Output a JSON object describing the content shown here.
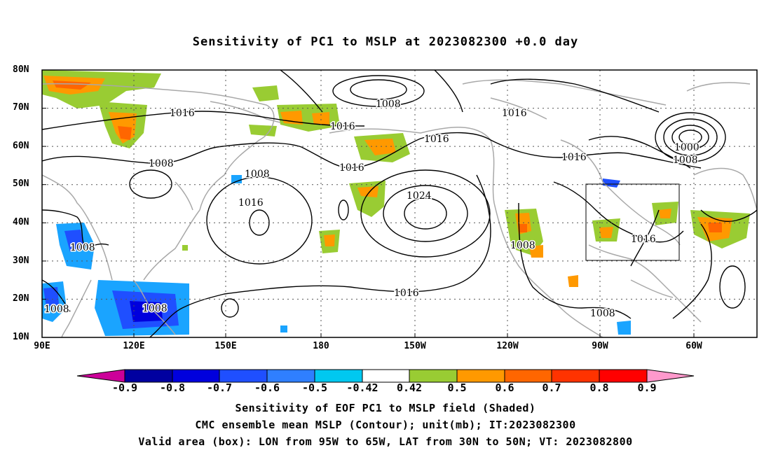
{
  "title": "Sensitivity of PC1 to MSLP at 2023082300 +0.0 day",
  "map": {
    "lat_labels": [
      "80N",
      "70N",
      "60N",
      "50N",
      "40N",
      "30N",
      "20N",
      "10N"
    ],
    "lon_labels": [
      "90E",
      "120E",
      "150E",
      "180",
      "150W",
      "120W",
      "90W",
      "60W"
    ],
    "contour_labels": [
      "1016",
      "1008",
      "1016",
      "1016",
      "1016",
      "1000",
      "1008",
      "1008",
      "1016",
      "1008",
      "1024",
      "1016",
      "1008",
      "1008",
      "1008",
      "1016",
      "1016",
      "1008",
      "1008",
      "1016"
    ],
    "valid_box": {
      "lon_from": "95W",
      "lon_to": "65W",
      "lat_from": "30N",
      "lat_to": "50N"
    }
  },
  "colorbar": {
    "labels": [
      "-0.9",
      "-0.8",
      "-0.7",
      "-0.6",
      "-0.5",
      "-0.42",
      "0.42",
      "0.5",
      "0.6",
      "0.7",
      "0.8",
      "0.9"
    ],
    "colors": [
      "#cc0099",
      "#0000a0",
      "#0000dd",
      "#1f4fff",
      "#2f7fff",
      "#1aa4ff",
      "#00c8f0",
      "#ffffff",
      "#99cc33",
      "#ff9900",
      "#ff6600",
      "#ff3300",
      "#ff0000",
      "#ff99cc"
    ]
  },
  "captions": [
    "Sensitivity of EOF PC1 to MSLP field (Shaded)",
    "CMC ensemble mean MSLP (Contour); unit(mb); IT:2023082300",
    "Valid area (box): LON from 95W to 65W, LAT from 30N to 50N; VT: 2023082800"
  ]
}
